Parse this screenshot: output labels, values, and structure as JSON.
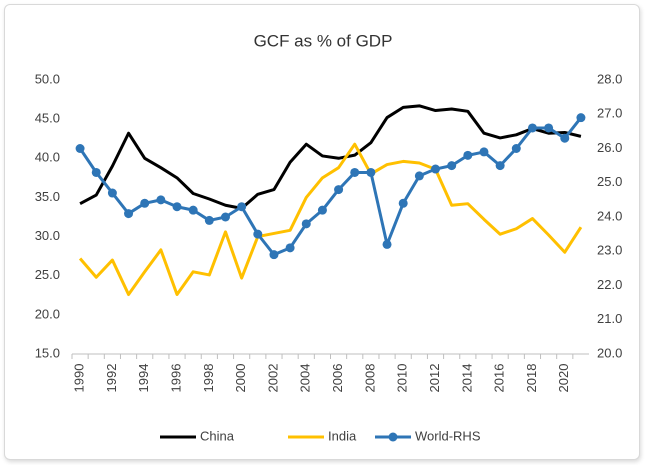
{
  "chart_data": {
    "type": "line",
    "title": "GCF as % of GDP",
    "categories": [
      "1990",
      null,
      "1992",
      null,
      "1994",
      null,
      "1996",
      null,
      "1998",
      null,
      "2000",
      null,
      "2002",
      null,
      "2004",
      null,
      "2006",
      null,
      "2008",
      null,
      "2010",
      null,
      "2012",
      null,
      "2014",
      null,
      "2016",
      null,
      "2018",
      null,
      "2020",
      null
    ],
    "series": [
      {
        "name": "China",
        "color": "#000000",
        "values": [
          34.2,
          35.3,
          39.0,
          43.2,
          40.0,
          38.8,
          37.5,
          35.5,
          34.8,
          34.0,
          33.6,
          35.4,
          36.0,
          39.5,
          41.8,
          40.3,
          40.0,
          40.4,
          42.0,
          45.2,
          46.5,
          46.7,
          46.1,
          46.3,
          46.0,
          43.2,
          42.6,
          43.0,
          43.8,
          43.2,
          43.3,
          42.8
        ]
      },
      {
        "name": "India",
        "color": "#ffc000",
        "values": [
          27.2,
          24.8,
          27.0,
          22.6,
          25.5,
          28.3,
          22.6,
          25.5,
          25.1,
          30.6,
          24.7,
          30.0,
          30.4,
          30.8,
          35.0,
          37.5,
          38.8,
          41.8,
          38.0,
          39.2,
          39.6,
          39.4,
          38.6,
          34.0,
          34.2,
          32.2,
          30.3,
          31.0,
          32.3,
          30.2,
          28.0,
          31.2
        ]
      },
      {
        "name": "World-RHS",
        "color": "#2e75b6",
        "axis": "y2",
        "markers": true,
        "values": [
          26.0,
          25.3,
          24.7,
          24.1,
          24.4,
          24.5,
          24.3,
          24.2,
          23.9,
          24.0,
          24.3,
          23.5,
          22.9,
          23.1,
          23.8,
          24.2,
          24.8,
          25.3,
          25.3,
          23.2,
          24.4,
          25.2,
          25.4,
          25.5,
          25.8,
          25.9,
          25.5,
          26.0,
          26.6,
          26.6,
          26.3,
          26.9
        ]
      }
    ],
    "ylim": [
      15,
      50
    ],
    "yticks": [
      {
        "value": 15,
        "label": "15.0"
      },
      {
        "value": 20,
        "label": "20.0"
      },
      {
        "value": 25,
        "label": "25.0"
      },
      {
        "value": 30,
        "label": "30.0"
      },
      {
        "value": 35,
        "label": "35.0"
      },
      {
        "value": 40,
        "label": "40.0"
      },
      {
        "value": 45,
        "label": "45.0"
      },
      {
        "value": 50,
        "label": "50.0"
      }
    ],
    "y2lim": [
      20,
      28
    ],
    "y2ticks": [
      {
        "value": 20,
        "label": "20.0"
      },
      {
        "value": 21,
        "label": "21.0"
      },
      {
        "value": 22,
        "label": "22.0"
      },
      {
        "value": 23,
        "label": "23.0"
      },
      {
        "value": 24,
        "label": "24.0"
      },
      {
        "value": 25,
        "label": "25.0"
      },
      {
        "value": 26,
        "label": "26.0"
      },
      {
        "value": 27,
        "label": "27.0"
      },
      {
        "value": 28,
        "label": "28.0"
      }
    ],
    "legend": "bottom"
  }
}
